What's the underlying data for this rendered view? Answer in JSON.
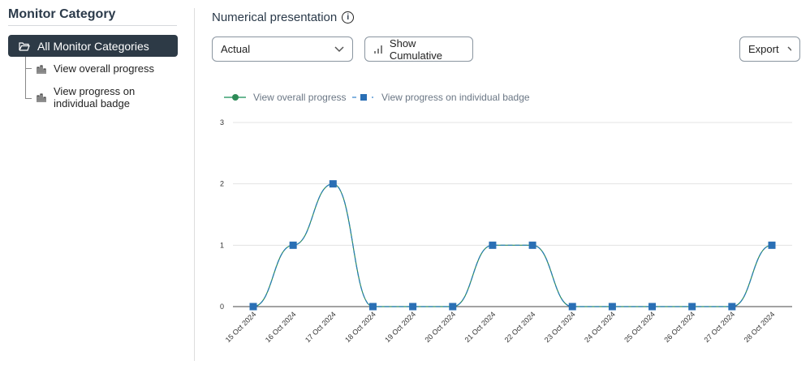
{
  "sidebar": {
    "title": "Monitor Category",
    "root": "All Monitor Categories",
    "items": [
      {
        "label": "View overall progress"
      },
      {
        "label": "View progress on individual badge"
      }
    ]
  },
  "main": {
    "title": "Numerical presentation",
    "select_value": "Actual",
    "cumulative_label": "Show Cumulative",
    "export_label": "Export"
  },
  "chart_data": {
    "type": "line",
    "categories": [
      "15 Oct 2024",
      "16 Oct 2024",
      "17 Oct 2024",
      "18 Oct 2024",
      "19 Oct 2024",
      "20 Oct 2024",
      "21 Oct 2024",
      "22 Oct 2024",
      "23 Oct 2024",
      "24 Oct 2024",
      "25 Oct 2024",
      "26 Oct 2024",
      "27 Oct 2024",
      "28 Oct 2024"
    ],
    "series": [
      {
        "name": "View overall progress",
        "color": "#2e8b57",
        "marker": "circle",
        "values": [
          0,
          1,
          2,
          0,
          0,
          0,
          1,
          1,
          0,
          0,
          0,
          0,
          0,
          1
        ]
      },
      {
        "name": "View progress on individual badge",
        "color": "#2a6fb5",
        "marker": "square",
        "values": [
          0,
          1,
          2,
          0,
          0,
          0,
          1,
          1,
          0,
          0,
          0,
          0,
          0,
          1
        ]
      }
    ],
    "ylim": [
      0,
      3
    ],
    "yticks": [
      0,
      1,
      2,
      3
    ],
    "grid": true,
    "legend": "top-left"
  }
}
